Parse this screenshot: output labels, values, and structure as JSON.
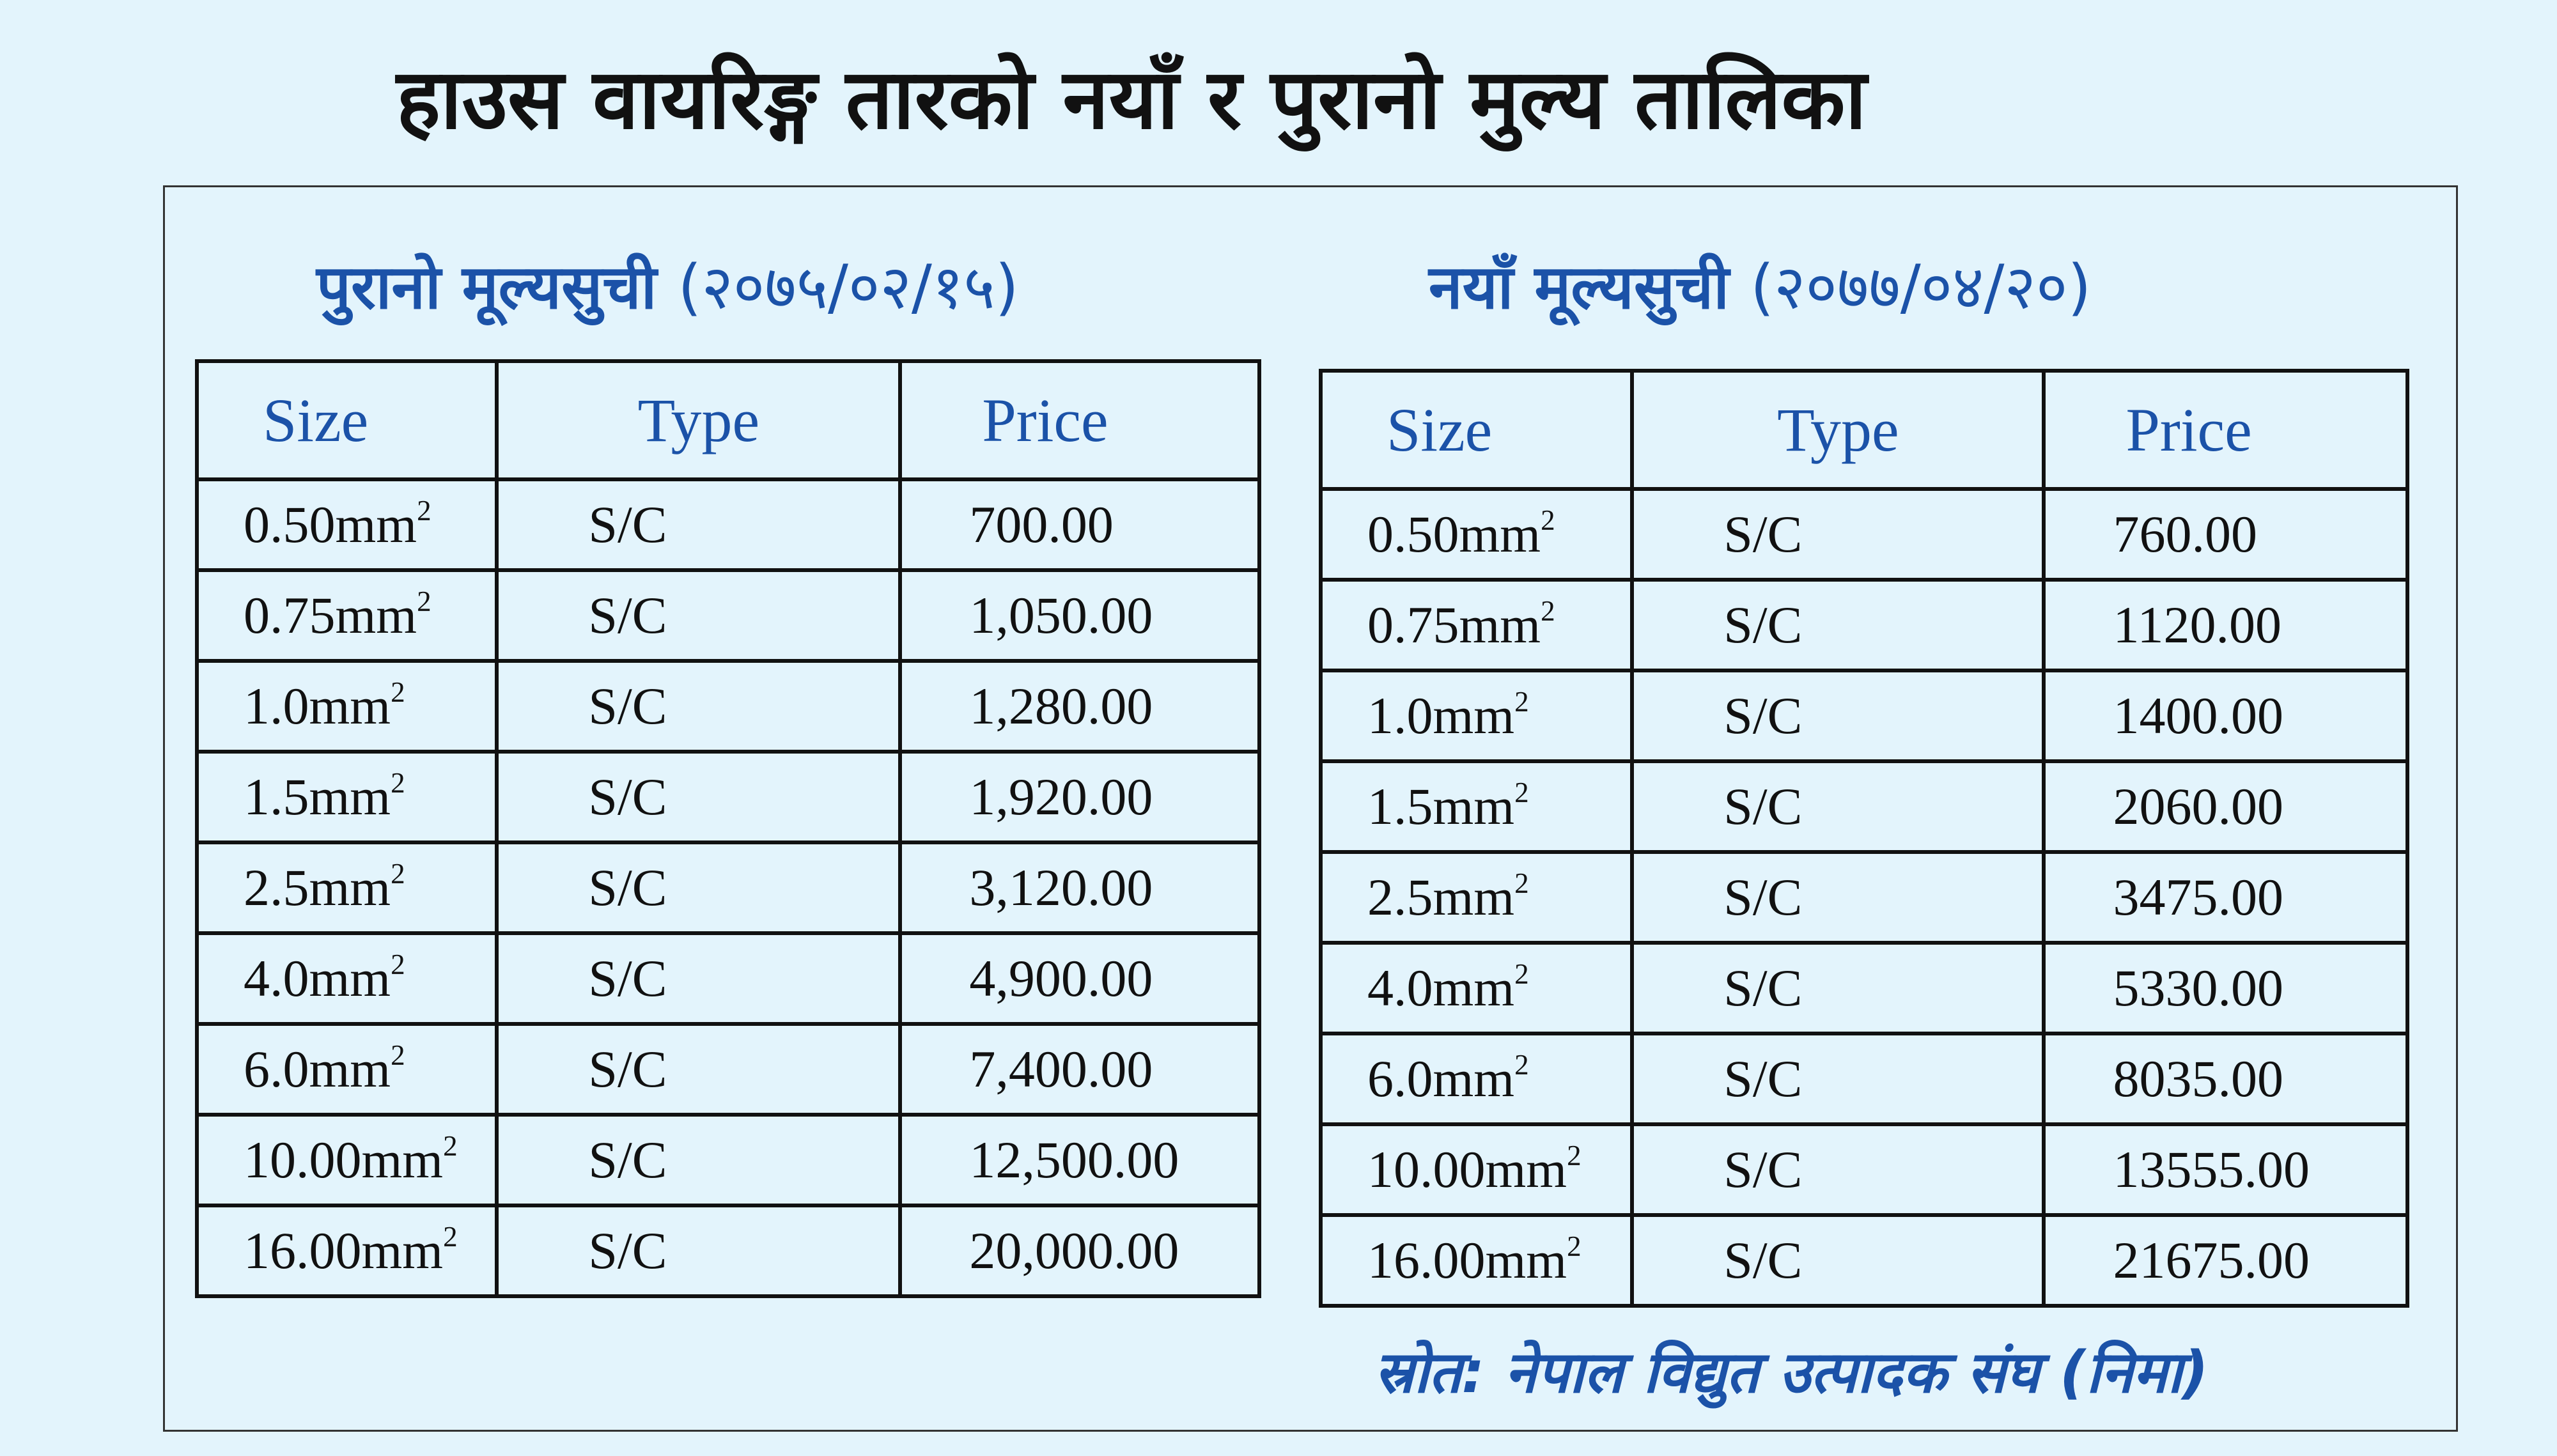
{
  "title": "हाउस वायरिङ्ग तारको नयाँ र पुरानो मुल्य तालिका",
  "old_list": {
    "title": "पुरानो मूल्यसुची",
    "date": "(२०७५/०२/१५)",
    "headers": {
      "size": "Size",
      "type": "Type",
      "price": "Price"
    },
    "unit_sup": "2",
    "rows": [
      {
        "size": "0.50mm",
        "type": "S/C",
        "price": "700.00"
      },
      {
        "size": "0.75mm",
        "type": "S/C",
        "price": "1,050.00"
      },
      {
        "size": "1.0mm",
        "type": "S/C",
        "price": "1,280.00"
      },
      {
        "size": "1.5mm",
        "type": "S/C",
        "price": "1,920.00"
      },
      {
        "size": "2.5mm",
        "type": "S/C",
        "price": "3,120.00"
      },
      {
        "size": "4.0mm",
        "type": "S/C",
        "price": "4,900.00"
      },
      {
        "size": "6.0mm",
        "type": "S/C",
        "price": "7,400.00"
      },
      {
        "size": "10.00mm",
        "type": "S/C",
        "price": "12,500.00"
      },
      {
        "size": "16.00mm",
        "type": "S/C",
        "price": "20,000.00"
      }
    ]
  },
  "new_list": {
    "title": "नयाँ मूल्यसुची",
    "date": "(२०७७/०४/२०)",
    "headers": {
      "size": "Size",
      "type": "Type",
      "price": "Price"
    },
    "unit_sup": "2",
    "rows": [
      {
        "size": "0.50mm",
        "type": "S/C",
        "price": "760.00"
      },
      {
        "size": "0.75mm",
        "type": "S/C",
        "price": "1120.00"
      },
      {
        "size": "1.0mm",
        "type": "S/C",
        "price": "1400.00"
      },
      {
        "size": "1.5mm",
        "type": "S/C",
        "price": "2060.00"
      },
      {
        "size": "2.5mm",
        "type": "S/C",
        "price": "3475.00"
      },
      {
        "size": "4.0mm",
        "type": "S/C",
        "price": "5330.00"
      },
      {
        "size": "6.0mm",
        "type": "S/C",
        "price": "8035.00"
      },
      {
        "size": "10.00mm",
        "type": "S/C",
        "price": "13555.00"
      },
      {
        "size": "16.00mm",
        "type": "S/C",
        "price": "21675.00"
      }
    ]
  },
  "source": "स्रोत: नेपाल विद्युत उत्पादक संघ (निमा)"
}
